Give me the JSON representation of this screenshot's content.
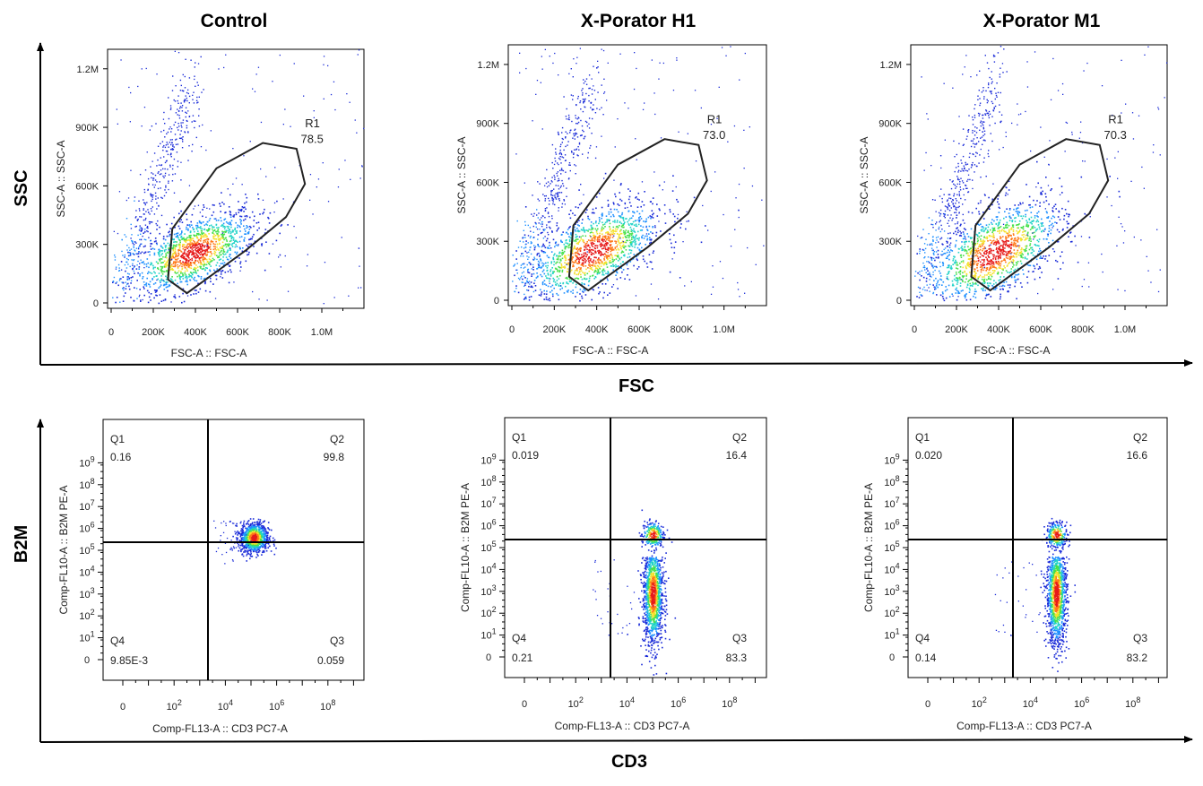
{
  "titles": [
    "Control",
    "X-Porator H1",
    "X-Porator M1"
  ],
  "axis_titles": {
    "row1_y": "SSC",
    "row1_x": "FSC",
    "row2_y": "B2M",
    "row2_x": "CD3"
  },
  "colors": {
    "gate": "#222222",
    "axis": "#000000",
    "density": [
      "#1a2bd8",
      "#1e90ff",
      "#22d3c8",
      "#46e04b",
      "#f4e12c",
      "#ff7a1a",
      "#e61b1b"
    ]
  },
  "chart_data": [
    {
      "type": "scatter",
      "panel": "Control",
      "xlabel": "FSC-A :: FSC-A",
      "ylabel": "SSC-A :: SSC-A",
      "xlim": [
        0,
        1200000
      ],
      "ylim": [
        0,
        1300000
      ],
      "x_ticks": [
        "0",
        "200K",
        "400K",
        "600K",
        "800K",
        "1.0M"
      ],
      "y_ticks": [
        "0",
        "300K",
        "600K",
        "900K",
        "1.2M"
      ],
      "gate": {
        "name": "R1",
        "percent": "78.5"
      },
      "population": {
        "center": [
          390000,
          260000
        ],
        "spread": [
          150000,
          110000
        ]
      }
    },
    {
      "type": "scatter",
      "panel": "X-Porator H1",
      "xlabel": "FSC-A :: FSC-A",
      "ylabel": "SSC-A :: SSC-A",
      "xlim": [
        0,
        1200000
      ],
      "ylim": [
        0,
        1300000
      ],
      "x_ticks": [
        "0",
        "200K",
        "400K",
        "600K",
        "800K",
        "1.0M"
      ],
      "y_ticks": [
        "0",
        "300K",
        "600K",
        "900K",
        "1.2M"
      ],
      "gate": {
        "name": "R1",
        "percent": "73.0"
      },
      "population": {
        "center": [
          380000,
          250000
        ],
        "spread": [
          160000,
          130000
        ]
      }
    },
    {
      "type": "scatter",
      "panel": "X-Porator M1",
      "xlabel": "FSC-A :: FSC-A",
      "ylabel": "SSC-A :: SSC-A",
      "xlim": [
        0,
        1200000
      ],
      "ylim": [
        0,
        1300000
      ],
      "x_ticks": [
        "0",
        "200K",
        "400K",
        "600K",
        "800K",
        "1.0M"
      ],
      "y_ticks": [
        "0",
        "300K",
        "600K",
        "900K",
        "1.2M"
      ],
      "gate": {
        "name": "R1",
        "percent": "70.3"
      },
      "population": {
        "center": [
          380000,
          245000
        ],
        "spread": [
          165000,
          140000
        ]
      }
    },
    {
      "type": "scatter",
      "panel": "Control",
      "xlabel": "Comp-FL13-A :: CD3 PC7-A",
      "ylabel": "Comp-FL10-A :: B2M PE-A",
      "x_ticks": [
        "0",
        "10^2",
        "10^4",
        "10^6",
        "10^8"
      ],
      "y_ticks": [
        "0",
        "10^1",
        "10^2",
        "10^3",
        "10^4",
        "10^5",
        "10^6",
        "10^7",
        "10^8",
        "10^9"
      ],
      "quadrants": {
        "Q1": "0.16",
        "Q2": "99.8",
        "Q3": "0.059",
        "Q4": "9.85E-3"
      },
      "population": {
        "center_log": [
          5.1,
          5.6
        ]
      }
    },
    {
      "type": "scatter",
      "panel": "X-Porator H1",
      "xlabel": "Comp-FL13-A :: CD3 PC7-A",
      "ylabel": "Comp-FL10-A :: B2M PE-A",
      "x_ticks": [
        "0",
        "10^2",
        "10^4",
        "10^6",
        "10^8"
      ],
      "y_ticks": [
        "0",
        "10^1",
        "10^2",
        "10^3",
        "10^4",
        "10^5",
        "10^6",
        "10^7",
        "10^8",
        "10^9"
      ],
      "quadrants": {
        "Q1": "0.019",
        "Q2": "16.4",
        "Q3": "83.3",
        "Q4": "0.21"
      },
      "population": {
        "center_log": [
          5.0,
          2.9
        ]
      }
    },
    {
      "type": "scatter",
      "panel": "X-Porator M1",
      "xlabel": "Comp-FL13-A :: CD3 PC7-A",
      "ylabel": "Comp-FL10-A :: B2M PE-A",
      "x_ticks": [
        "0",
        "10^2",
        "10^4",
        "10^6",
        "10^8"
      ],
      "y_ticks": [
        "0",
        "10^1",
        "10^2",
        "10^3",
        "10^4",
        "10^5",
        "10^6",
        "10^7",
        "10^8",
        "10^9"
      ],
      "quadrants": {
        "Q1": "0.020",
        "Q2": "16.6",
        "Q3": "83.2",
        "Q4": "0.14"
      },
      "population": {
        "center_log": [
          5.0,
          2.9
        ]
      }
    }
  ]
}
